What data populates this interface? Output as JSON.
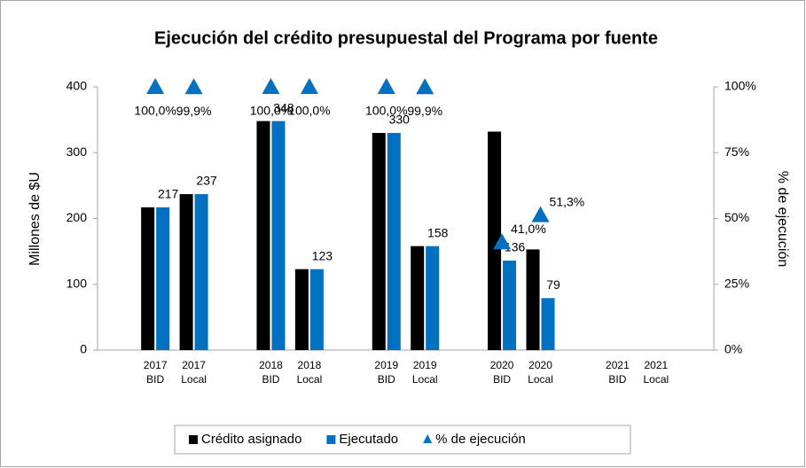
{
  "chart_data": {
    "type": "bar",
    "title": "Ejecución del crédito presupuestal del Programa por fuente",
    "y_label": "Millones de $U",
    "y2_label": "% de ejecución",
    "categories": [
      null,
      [
        "2017",
        "BID"
      ],
      [
        "2017",
        "Local"
      ],
      null,
      [
        "2018",
        "BID"
      ],
      [
        "2018",
        "Local"
      ],
      null,
      [
        "2019",
        "BID"
      ],
      [
        "2019",
        "Local"
      ],
      null,
      [
        "2020",
        "BID"
      ],
      [
        "2020",
        "Local"
      ],
      null,
      [
        "2021",
        "BID"
      ],
      [
        "2021",
        "Local"
      ],
      null
    ],
    "series": [
      {
        "name": "Crédito asignado",
        "type": "bar",
        "color": "#000000",
        "values": [
          null,
          217,
          237,
          null,
          348,
          123,
          null,
          330,
          158,
          null,
          332,
          153,
          null,
          null,
          null,
          null
        ]
      },
      {
        "name": "Ejecutado",
        "type": "bar",
        "color": "#0070c0",
        "values": [
          null,
          217,
          237,
          null,
          348,
          123,
          null,
          330,
          158,
          null,
          136,
          79,
          null,
          null,
          null,
          null
        ]
      },
      {
        "name": "% de ejecución",
        "type": "scatter",
        "axis": "y2",
        "color": "#0070c0",
        "values": [
          null,
          100,
          99.9,
          null,
          100,
          100,
          null,
          100,
          99.9,
          null,
          41,
          51.3,
          null,
          null,
          null,
          null
        ],
        "value_labels": [
          null,
          "100,0%",
          "99,9%",
          null,
          "100,0%",
          "100,0%",
          null,
          "100,0%",
          "99,9%",
          null,
          "41,0%",
          "51,3%",
          null,
          null,
          null,
          null
        ]
      }
    ],
    "ylim": [
      0,
      400
    ],
    "yticks": [
      0,
      100,
      200,
      300,
      400
    ],
    "y2lim": [
      0,
      100
    ],
    "y2ticks": [
      {
        "value": 0,
        "label": "0%"
      },
      {
        "value": 25,
        "label": "25%"
      },
      {
        "value": 50,
        "label": "50%"
      },
      {
        "value": 75,
        "label": "75%"
      },
      {
        "value": 100,
        "label": "100%"
      }
    ],
    "grid": false,
    "legend": "bottom"
  }
}
